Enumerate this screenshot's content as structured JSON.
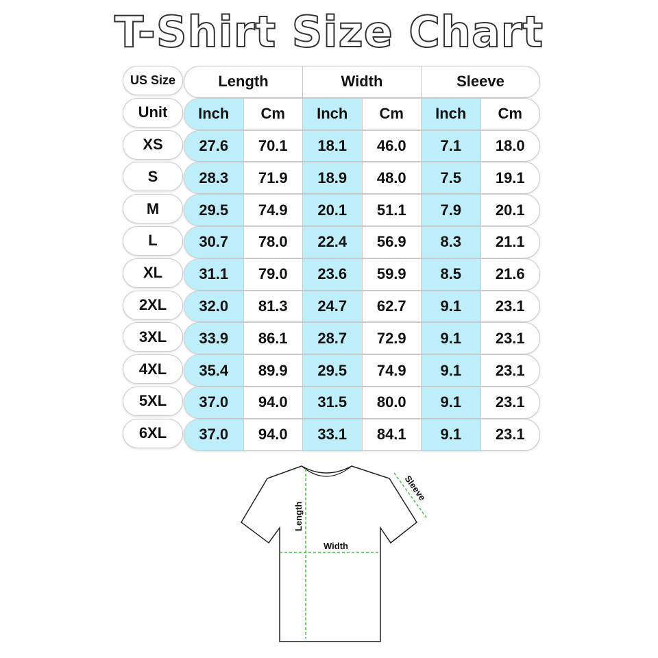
{
  "title": "T-Shirt Size Chart",
  "header": {
    "size_label": "US Size",
    "unit_label": "Unit",
    "groups": [
      "Length",
      "Width",
      "Sleeve"
    ],
    "units": [
      "Inch",
      "Cm",
      "Inch",
      "Cm",
      "Inch",
      "Cm"
    ]
  },
  "colors": {
    "inch_column": "#bdeefa",
    "measure_lines": "#3cc43c"
  },
  "rows": [
    {
      "size": "XS",
      "values": [
        "27.6",
        "70.1",
        "18.1",
        "46.0",
        "7.1",
        "18.0"
      ]
    },
    {
      "size": "S",
      "values": [
        "28.3",
        "71.9",
        "18.9",
        "48.0",
        "7.5",
        "19.1"
      ]
    },
    {
      "size": "M",
      "values": [
        "29.5",
        "74.9",
        "20.1",
        "51.1",
        "7.9",
        "20.1"
      ]
    },
    {
      "size": "L",
      "values": [
        "30.7",
        "78.0",
        "22.4",
        "56.9",
        "8.3",
        "21.1"
      ]
    },
    {
      "size": "XL",
      "values": [
        "31.1",
        "79.0",
        "23.6",
        "59.9",
        "8.5",
        "21.6"
      ]
    },
    {
      "size": "2XL",
      "values": [
        "32.0",
        "81.3",
        "24.7",
        "62.7",
        "9.1",
        "23.1"
      ]
    },
    {
      "size": "3XL",
      "values": [
        "33.9",
        "86.1",
        "28.7",
        "72.9",
        "9.1",
        "23.1"
      ]
    },
    {
      "size": "4XL",
      "values": [
        "35.4",
        "89.9",
        "29.5",
        "74.9",
        "9.1",
        "23.1"
      ]
    },
    {
      "size": "5XL",
      "values": [
        "37.0",
        "94.0",
        "31.5",
        "80.0",
        "9.1",
        "23.1"
      ]
    },
    {
      "size": "6XL",
      "values": [
        "37.0",
        "94.0",
        "33.1",
        "84.1",
        "9.1",
        "23.1"
      ]
    }
  ],
  "diagram": {
    "length_label": "Length",
    "width_label": "Width",
    "sleeve_label": "Sleeve"
  }
}
